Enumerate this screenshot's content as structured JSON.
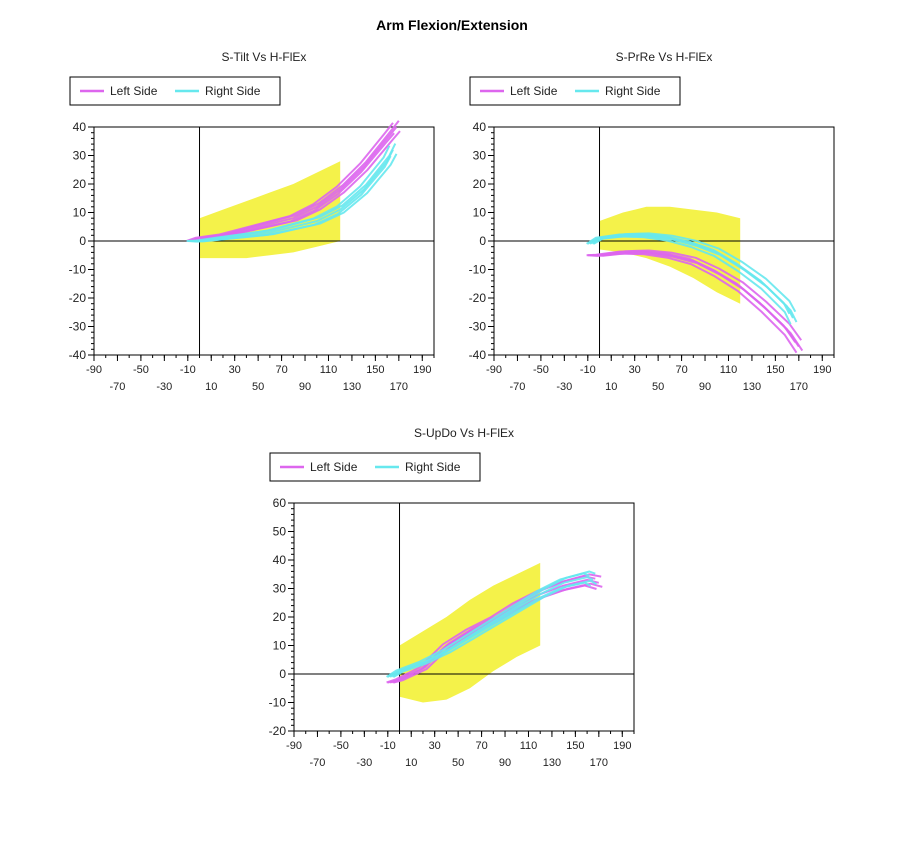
{
  "page": {
    "title": "Arm Flexion/Extension"
  },
  "colors": {
    "left": "#dd66ee",
    "right": "#66e8ee",
    "band": "#f4f24a"
  },
  "chart_data": [
    {
      "type": "line",
      "title": "S-Tilt Vs H-FlEx",
      "xlim": [
        -90,
        200
      ],
      "ylim": [
        -40,
        40
      ],
      "x_ticks_upper": [
        -90,
        -50,
        -10,
        30,
        70,
        110,
        150,
        190
      ],
      "x_ticks_lower": [
        -70,
        -30,
        10,
        50,
        90,
        130,
        170
      ],
      "y_ticks": [
        40,
        30,
        20,
        10,
        0,
        -10,
        -20,
        -30,
        -40
      ],
      "legend": [
        "Left Side",
        "Right Side"
      ],
      "band": {
        "x": [
          0,
          20,
          40,
          60,
          80,
          100,
          120
        ],
        "upper": [
          8,
          11,
          14,
          17,
          20,
          24,
          28
        ],
        "lower": [
          -6,
          -6,
          -6,
          -5,
          -4,
          -2,
          0
        ]
      },
      "series": [
        {
          "name": "Left Side",
          "x": [
            -8,
            0,
            20,
            40,
            60,
            80,
            100,
            120,
            140,
            160,
            168
          ],
          "y": [
            0,
            1,
            2,
            4,
            6,
            8,
            12,
            18,
            26,
            36,
            40
          ]
        },
        {
          "name": "Right Side",
          "x": [
            -8,
            0,
            20,
            40,
            60,
            80,
            100,
            120,
            140,
            160,
            165
          ],
          "y": [
            0,
            0,
            1,
            2,
            3,
            5,
            7,
            11,
            18,
            28,
            32
          ]
        }
      ]
    },
    {
      "type": "line",
      "title": "S-PrRe Vs H-FlEx",
      "xlim": [
        -90,
        200
      ],
      "ylim": [
        -40,
        40
      ],
      "x_ticks_upper": [
        -90,
        -50,
        -10,
        30,
        70,
        110,
        150,
        190
      ],
      "x_ticks_lower": [
        -70,
        -30,
        10,
        50,
        90,
        130,
        170
      ],
      "y_ticks": [
        40,
        30,
        20,
        10,
        0,
        -10,
        -20,
        -30,
        -40
      ],
      "legend": [
        "Left Side",
        "Right Side"
      ],
      "band": {
        "x": [
          0,
          20,
          40,
          60,
          80,
          100,
          120
        ],
        "upper": [
          7,
          10,
          12,
          12,
          11,
          10,
          8
        ],
        "lower": [
          -3,
          -4,
          -6,
          -9,
          -13,
          -18,
          -22
        ]
      },
      "series": [
        {
          "name": "Left Side",
          "x": [
            -8,
            0,
            20,
            40,
            60,
            80,
            100,
            120,
            140,
            160,
            170
          ],
          "y": [
            -5,
            -5,
            -4,
            -4,
            -5,
            -7,
            -11,
            -16,
            -23,
            -31,
            -37
          ]
        },
        {
          "name": "Right Side",
          "x": [
            -8,
            0,
            20,
            40,
            60,
            80,
            100,
            120,
            140,
            160,
            165
          ],
          "y": [
            -1,
            1,
            2,
            2,
            1,
            -1,
            -4,
            -9,
            -15,
            -23,
            -27
          ]
        }
      ]
    },
    {
      "type": "line",
      "title": "S-UpDo Vs H-FlEx",
      "xlim": [
        -90,
        200
      ],
      "ylim": [
        -20,
        60
      ],
      "x_ticks_upper": [
        -90,
        -50,
        -10,
        30,
        70,
        110,
        150,
        190
      ],
      "x_ticks_lower": [
        -70,
        -30,
        10,
        50,
        90,
        130,
        170
      ],
      "y_ticks": [
        60,
        50,
        40,
        30,
        20,
        10,
        0,
        -10,
        -20
      ],
      "legend": [
        "Left Side",
        "Right Side"
      ],
      "band": {
        "x": [
          0,
          20,
          40,
          60,
          80,
          100,
          120
        ],
        "upper": [
          10,
          15,
          20,
          26,
          31,
          35,
          39
        ],
        "lower": [
          -8,
          -10,
          -9,
          -5,
          1,
          6,
          10
        ]
      },
      "series": [
        {
          "name": "Left Side",
          "x": [
            -8,
            0,
            20,
            40,
            60,
            80,
            100,
            120,
            140,
            160,
            170
          ],
          "y": [
            -3,
            -2,
            2,
            10,
            15,
            19,
            24,
            28,
            31,
            33,
            32
          ]
        },
        {
          "name": "Right Side",
          "x": [
            -8,
            0,
            20,
            40,
            60,
            80,
            100,
            120,
            140,
            160,
            165
          ],
          "y": [
            -1,
            1,
            4,
            8,
            13,
            18,
            23,
            28,
            32,
            34,
            33
          ]
        }
      ]
    }
  ]
}
